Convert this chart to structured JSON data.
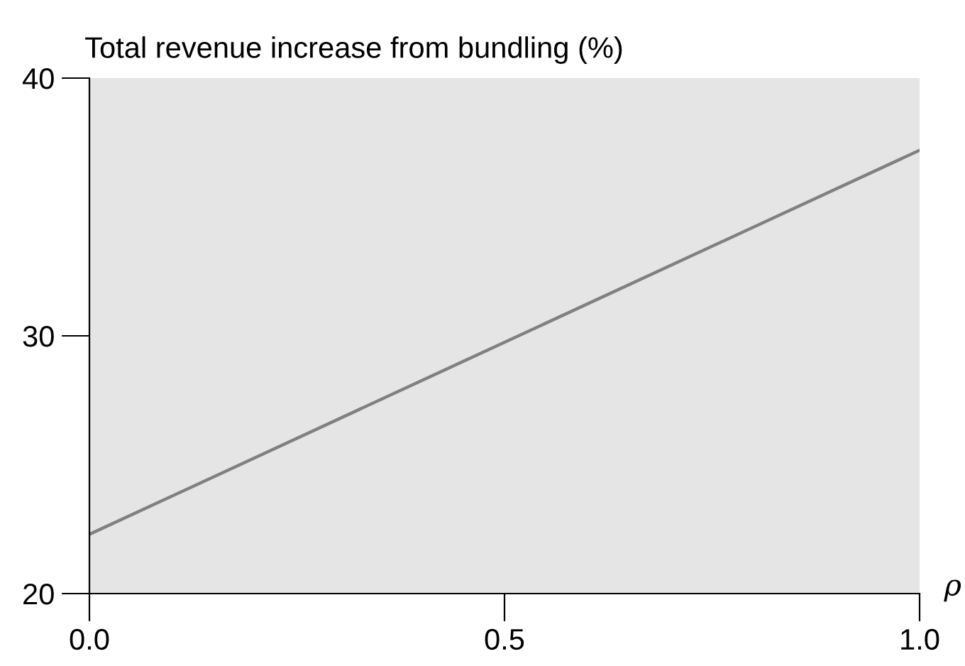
{
  "chart_data": {
    "type": "line",
    "title": "Total revenue increase from bundling (%)",
    "xlabel": "ρ",
    "x": [
      0.0,
      1.0
    ],
    "series": [
      {
        "color": "#808080",
        "values": [
          22.3,
          37.2
        ]
      }
    ],
    "xlim": [
      0.0,
      1.0
    ],
    "ylim": [
      20,
      40
    ],
    "xticks": [
      {
        "value": 0.0,
        "label": "0.0"
      },
      {
        "value": 0.5,
        "label": "0.5"
      },
      {
        "value": 1.0,
        "label": "1.0"
      }
    ],
    "yticks": [
      20,
      30,
      40
    ],
    "grid": false,
    "legend": false,
    "marker": "none",
    "line_style": "solid"
  }
}
